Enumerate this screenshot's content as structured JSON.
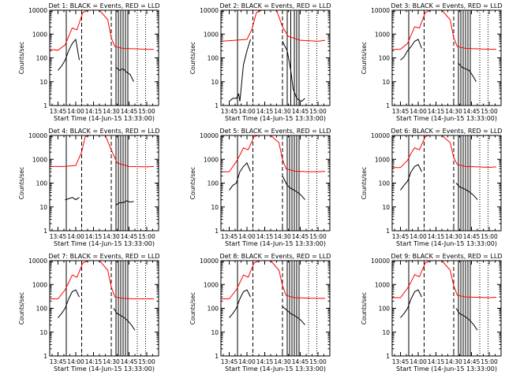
{
  "chart_data": {
    "type": "line",
    "ylabel": "Counts/sec",
    "xlabel": "Start Time (14-Jun-15 13:33:00)",
    "xlim": [
      "13:38",
      "15:10"
    ],
    "ylim": [
      1,
      10000
    ],
    "yscale": "log",
    "x_ticks": [
      "13:45",
      "14:00",
      "14:15",
      "14:30",
      "14:45",
      "15:00"
    ],
    "y_ticks": [
      "1",
      "10",
      "100",
      "1000",
      "10000"
    ],
    "series_colors": {
      "events": "#000000",
      "lld": "#ff0000"
    },
    "panels": [
      {
        "title": "Det 1: BLACK = Events, RED = LLD",
        "events": {
          "x": [
            "13:45",
            "13:48",
            "13:51",
            "13:54",
            "13:57",
            "14:00",
            "14:03"
          ],
          "y": [
            30,
            45,
            80,
            200,
            400,
            600,
            80
          ]
        },
        "events2": {
          "x": [
            "14:34",
            "14:37",
            "14:40",
            "14:43",
            "14:46",
            "14:49"
          ],
          "y": [
            40,
            30,
            35,
            25,
            20,
            10
          ]
        },
        "lld": {
          "x": [
            "13:38",
            "13:45",
            "13:51",
            "13:54",
            "13:57",
            "14:01",
            "14:06",
            "14:13",
            "14:20",
            "14:27",
            "14:30",
            "14:33",
            "14:40",
            "14:50",
            "15:00",
            "15:06"
          ],
          "y": [
            230,
            210,
            350,
            800,
            1800,
            1500,
            8000,
            12000,
            10000,
            4000,
            700,
            300,
            250,
            240,
            230,
            230
          ]
        },
        "solid_lines": [
          "13:52",
          "14:34",
          "14:36",
          "14:38",
          "14:40",
          "14:42",
          "14:44"
        ],
        "dashed_lines": [
          "14:05",
          "14:30"
        ],
        "dotted_lines": [
          "14:52",
          "14:59"
        ]
      },
      {
        "title": "Det 2: BLACK = Events, RED = LLD",
        "events": {
          "x": [
            "13:45",
            "13:48",
            "13:51",
            "13:53",
            "13:54",
            "13:57",
            "14:00",
            "14:03"
          ],
          "y": [
            1.5,
            2,
            2,
            3,
            1.5,
            50,
            200,
            600
          ]
        },
        "events2": {
          "x": [
            "14:30",
            "14:34",
            "14:37",
            "14:39",
            "14:42",
            "14:46",
            "14:49"
          ],
          "y": [
            500,
            200,
            30,
            5,
            2,
            1.5,
            2
          ]
        },
        "lld": {
          "x": [
            "13:38",
            "13:50",
            "14:00",
            "14:04",
            "14:08",
            "14:15",
            "14:25",
            "14:30",
            "14:35",
            "14:45",
            "15:00",
            "15:06"
          ],
          "y": [
            500,
            550,
            600,
            1500,
            8000,
            12000,
            10000,
            2000,
            800,
            550,
            500,
            550
          ]
        },
        "solid_lines": [
          "13:52",
          "14:34",
          "14:37",
          "14:40",
          "14:42",
          "14:44"
        ],
        "dashed_lines": [
          "14:05",
          "14:30"
        ],
        "dotted_lines": [
          "14:52",
          "14:59"
        ]
      },
      {
        "title": "Det 3: BLACK = Events, RED = LLD",
        "events": {
          "x": [
            "13:45",
            "13:48",
            "13:51",
            "13:54",
            "13:57",
            "14:00",
            "14:03"
          ],
          "y": [
            80,
            110,
            200,
            300,
            500,
            600,
            250
          ]
        },
        "events2": {
          "x": [
            "14:34",
            "14:37",
            "14:40",
            "14:43",
            "14:46",
            "14:49"
          ],
          "y": [
            60,
            40,
            35,
            30,
            18,
            10
          ]
        },
        "lld": {
          "x": [
            "13:38",
            "13:45",
            "13:51",
            "13:54",
            "13:57",
            "14:01",
            "14:06",
            "14:13",
            "14:20",
            "14:27",
            "14:30",
            "14:33",
            "14:40",
            "14:50",
            "15:00",
            "15:06"
          ],
          "y": [
            230,
            230,
            400,
            900,
            2000,
            1800,
            8000,
            12000,
            10000,
            4000,
            700,
            300,
            250,
            240,
            230,
            230
          ]
        },
        "solid_lines": [
          "13:52",
          "14:34",
          "14:36",
          "14:38",
          "14:40",
          "14:42",
          "14:44"
        ],
        "dashed_lines": [
          "14:05",
          "14:30"
        ],
        "dotted_lines": [
          "14:52",
          "14:59"
        ]
      },
      {
        "title": "Det 4: BLACK = Events, RED = LLD",
        "events": {
          "x": [
            "13:51",
            "13:54",
            "13:57",
            "14:00",
            "14:03"
          ],
          "y": [
            20,
            22,
            25,
            20,
            25
          ]
        },
        "events2": {
          "x": [
            "14:34",
            "14:37",
            "14:40",
            "14:43",
            "14:46",
            "14:49"
          ],
          "y": [
            12,
            15,
            15,
            18,
            16,
            17
          ]
        },
        "lld": {
          "x": [
            "13:38",
            "13:50",
            "14:00",
            "14:05",
            "14:08",
            "14:15",
            "14:25",
            "14:30",
            "14:35",
            "14:45",
            "15:00",
            "15:06"
          ],
          "y": [
            500,
            500,
            550,
            2000,
            9000,
            12000,
            10000,
            2500,
            700,
            500,
            480,
            500
          ]
        },
        "solid_lines": [
          "13:52",
          "14:34",
          "14:36",
          "14:38",
          "14:40",
          "14:42",
          "14:44"
        ],
        "dashed_lines": [
          "14:05",
          "14:30"
        ],
        "dotted_lines": [
          "14:52",
          "14:59"
        ]
      },
      {
        "title": "Det 5: BLACK = Events, RED = LLD",
        "events": {
          "x": [
            "13:45",
            "13:48",
            "13:51",
            "13:54",
            "13:57",
            "14:00",
            "14:03"
          ],
          "y": [
            50,
            80,
            100,
            300,
            500,
            700,
            300
          ]
        },
        "events2": {
          "x": [
            "14:30",
            "14:34",
            "14:37",
            "14:40",
            "14:43",
            "14:46",
            "14:49"
          ],
          "y": [
            200,
            80,
            60,
            50,
            40,
            30,
            20
          ]
        },
        "lld": {
          "x": [
            "13:38",
            "13:45",
            "13:51",
            "13:54",
            "13:57",
            "14:01",
            "14:06",
            "14:13",
            "14:20",
            "14:27",
            "14:30",
            "14:33",
            "14:40",
            "14:50",
            "15:00",
            "15:06"
          ],
          "y": [
            300,
            300,
            800,
            1500,
            3000,
            2500,
            9000,
            12000,
            10000,
            5000,
            1000,
            400,
            320,
            300,
            300,
            310
          ]
        },
        "solid_lines": [
          "13:52",
          "14:34",
          "14:36",
          "14:38",
          "14:40",
          "14:42",
          "14:44"
        ],
        "dashed_lines": [
          "14:05",
          "14:30"
        ],
        "dotted_lines": [
          "14:52",
          "14:59"
        ]
      },
      {
        "title": "Det 6: BLACK = Events, RED = LLD",
        "events": {
          "x": [
            "13:45",
            "13:48",
            "13:51",
            "13:54",
            "13:57",
            "14:00",
            "14:03"
          ],
          "y": [
            50,
            80,
            120,
            300,
            500,
            600,
            300
          ]
        },
        "events2": {
          "x": [
            "14:32",
            "14:35",
            "14:38",
            "14:41",
            "14:44",
            "14:47",
            "14:50"
          ],
          "y": [
            100,
            70,
            60,
            50,
            40,
            30,
            20
          ]
        },
        "lld": {
          "x": [
            "13:38",
            "13:45",
            "13:51",
            "13:54",
            "13:57",
            "14:01",
            "14:06",
            "14:13",
            "14:20",
            "14:27",
            "14:30",
            "14:33",
            "14:40",
            "14:50",
            "15:00",
            "15:06"
          ],
          "y": [
            450,
            450,
            900,
            1800,
            3000,
            2500,
            9000,
            12000,
            10000,
            5000,
            1200,
            600,
            500,
            480,
            460,
            480
          ]
        },
        "solid_lines": [
          "13:52",
          "14:34",
          "14:36",
          "14:38",
          "14:40",
          "14:42",
          "14:44"
        ],
        "dashed_lines": [
          "14:05",
          "14:30"
        ],
        "dotted_lines": [
          "14:52",
          "14:59"
        ]
      },
      {
        "title": "Det 7: BLACK = Events, RED = LLD",
        "events": {
          "x": [
            "13:45",
            "13:48",
            "13:51",
            "13:54",
            "13:57",
            "14:00",
            "14:03"
          ],
          "y": [
            40,
            60,
            100,
            250,
            500,
            600,
            300
          ]
        },
        "events2": {
          "x": [
            "14:32",
            "14:35",
            "14:38",
            "14:41",
            "14:44",
            "14:47",
            "14:50"
          ],
          "y": [
            100,
            60,
            50,
            40,
            30,
            20,
            12
          ]
        },
        "lld": {
          "x": [
            "13:38",
            "13:45",
            "13:51",
            "13:54",
            "13:57",
            "14:01",
            "14:06",
            "14:13",
            "14:20",
            "14:27",
            "14:30",
            "14:33",
            "14:40",
            "14:50",
            "15:00",
            "15:06"
          ],
          "y": [
            250,
            250,
            600,
            1200,
            2500,
            2000,
            8000,
            12000,
            10000,
            4000,
            800,
            300,
            260,
            250,
            250,
            250
          ]
        },
        "solid_lines": [
          "13:52",
          "14:34",
          "14:36",
          "14:38",
          "14:40",
          "14:42",
          "14:44"
        ],
        "dashed_lines": [
          "14:05",
          "14:30"
        ],
        "dotted_lines": [
          "14:52",
          "14:59"
        ]
      },
      {
        "title": "Det 8: BLACK = Events, RED = LLD",
        "events": {
          "x": [
            "13:45",
            "13:48",
            "13:51",
            "13:54",
            "13:57",
            "14:00",
            "14:03"
          ],
          "y": [
            40,
            60,
            100,
            250,
            500,
            600,
            300
          ]
        },
        "events2": {
          "x": [
            "14:30",
            "14:34",
            "14:37",
            "14:40",
            "14:43",
            "14:46",
            "14:49"
          ],
          "y": [
            120,
            80,
            60,
            50,
            40,
            30,
            20
          ]
        },
        "lld": {
          "x": [
            "13:38",
            "13:45",
            "13:51",
            "13:54",
            "13:57",
            "14:01",
            "14:06",
            "14:13",
            "14:20",
            "14:27",
            "14:30",
            "14:33",
            "14:40",
            "14:50",
            "15:00",
            "15:06"
          ],
          "y": [
            250,
            250,
            600,
            1200,
            2500,
            2000,
            8000,
            12000,
            10000,
            4000,
            900,
            350,
            280,
            270,
            260,
            260
          ]
        },
        "solid_lines": [
          "13:52",
          "14:34",
          "14:36",
          "14:38",
          "14:40",
          "14:42",
          "14:44"
        ],
        "dashed_lines": [
          "14:05",
          "14:30"
        ],
        "dotted_lines": [
          "14:52",
          "14:59"
        ]
      },
      {
        "title": "Det 9: BLACK = Events, RED = LLD",
        "events": {
          "x": [
            "13:45",
            "13:48",
            "13:51",
            "13:54",
            "13:57",
            "14:00",
            "14:03"
          ],
          "y": [
            40,
            60,
            100,
            250,
            500,
            600,
            300
          ]
        },
        "events2": {
          "x": [
            "14:32",
            "14:35",
            "14:38",
            "14:41",
            "14:44",
            "14:47",
            "14:50"
          ],
          "y": [
            100,
            60,
            50,
            40,
            30,
            20,
            12
          ]
        },
        "lld": {
          "x": [
            "13:38",
            "13:45",
            "13:51",
            "13:54",
            "13:57",
            "14:01",
            "14:06",
            "14:13",
            "14:20",
            "14:27",
            "14:30",
            "14:33",
            "14:40",
            "14:50",
            "15:00",
            "15:06"
          ],
          "y": [
            280,
            280,
            700,
            1300,
            2600,
            2100,
            8000,
            12000,
            10000,
            4000,
            900,
            350,
            300,
            290,
            280,
            290
          ]
        },
        "solid_lines": [
          "13:52",
          "14:34",
          "14:36",
          "14:38",
          "14:40",
          "14:42",
          "14:44"
        ],
        "dashed_lines": [
          "14:05",
          "14:30"
        ],
        "dotted_lines": [
          "14:52",
          "14:59"
        ]
      }
    ]
  }
}
